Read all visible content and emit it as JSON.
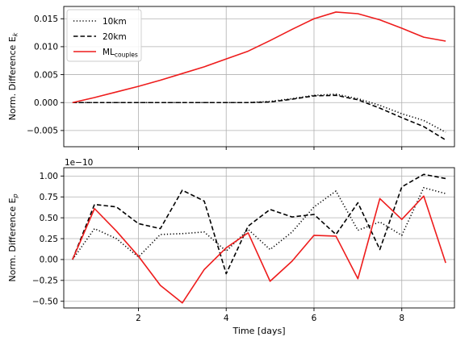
{
  "chart_data": [
    {
      "type": "line",
      "title": "",
      "xlabel": "",
      "ylabel": "Norm. Difference E",
      "ylabel_sub": "k",
      "xlim": [
        0.3,
        9.2
      ],
      "ylim": [
        -0.0079,
        0.0172
      ],
      "xticks": [
        2,
        4,
        6,
        8
      ],
      "xtick_labels_visible": false,
      "yticks": [
        -0.005,
        0.0,
        0.005,
        0.01,
        0.015
      ],
      "ytick_labels": [
        "−0.005",
        "0.000",
        "0.005",
        "0.010",
        "0.015"
      ],
      "grid": true,
      "legend": {
        "placement": "top-left",
        "entries": [
          {
            "label": "10km",
            "sub": ""
          },
          {
            "label": "20km",
            "sub": ""
          },
          {
            "label": "ML",
            "sub": "couples"
          }
        ]
      },
      "series": [
        {
          "name": "10km",
          "color": "#000000",
          "dash": "dotted",
          "x": [
            0.5,
            1,
            1.5,
            2,
            2.5,
            3,
            3.5,
            4,
            4.5,
            5,
            5.5,
            6,
            6.5,
            7,
            7.5,
            8,
            8.5,
            9
          ],
          "y": [
            0.0,
            0.0,
            0.0,
            0.0,
            0.0,
            0.0,
            0.0,
            0.0,
            0.0,
            0.0002,
            0.0007,
            0.0013,
            0.0015,
            0.0007,
            -0.0005,
            -0.002,
            -0.0032,
            -0.0053
          ]
        },
        {
          "name": "20km",
          "color": "#000000",
          "dash": "dashed",
          "x": [
            0.5,
            1,
            1.5,
            2,
            2.5,
            3,
            3.5,
            4,
            4.5,
            5,
            5.5,
            6,
            6.5,
            7,
            7.5,
            8,
            8.5,
            9
          ],
          "y": [
            0.0,
            0.0,
            0.0,
            0.0,
            0.0,
            0.0,
            0.0,
            0.0,
            0.0,
            0.0001,
            0.0006,
            0.0012,
            0.0013,
            0.0005,
            -0.001,
            -0.0027,
            -0.0043,
            -0.0067
          ]
        },
        {
          "name": "ML couples",
          "color": "#ee1c1c",
          "dash": "solid",
          "x": [
            0.5,
            1,
            1.5,
            2,
            2.5,
            3,
            3.5,
            4,
            4.5,
            5,
            5.5,
            6,
            6.5,
            7,
            7.5,
            8,
            8.5,
            9
          ],
          "y": [
            0.0,
            0.0009,
            0.0019,
            0.0029,
            0.004,
            0.0052,
            0.0064,
            0.0078,
            0.0092,
            0.0111,
            0.0131,
            0.015,
            0.0162,
            0.0159,
            0.0148,
            0.0133,
            0.0117,
            0.011
          ]
        }
      ]
    },
    {
      "type": "line",
      "title": "",
      "xlabel": "Time [days]",
      "ylabel": "Norm. Difference E",
      "ylabel_sub": "p",
      "offset_text": "1e−10",
      "xlim": [
        0.3,
        9.2
      ],
      "ylim": [
        -0.58,
        1.1
      ],
      "xticks": [
        2,
        4,
        6,
        8
      ],
      "xtick_labels": [
        "2",
        "4",
        "6",
        "8"
      ],
      "yticks": [
        -0.5,
        -0.25,
        0.0,
        0.25,
        0.5,
        0.75,
        1.0
      ],
      "ytick_labels": [
        "−0.50",
        "−0.25",
        "0.00",
        "0.25",
        "0.50",
        "0.75",
        "1.00"
      ],
      "grid": true,
      "series": [
        {
          "name": "10km",
          "color": "#000000",
          "dash": "dotted",
          "x": [
            0.5,
            1,
            1.5,
            2,
            2.5,
            3,
            3.5,
            4,
            4.5,
            5,
            5.5,
            6,
            6.5,
            7,
            7.5,
            8,
            8.5,
            9
          ],
          "y": [
            0.0,
            0.37,
            0.25,
            0.03,
            0.3,
            0.31,
            0.33,
            0.1,
            0.36,
            0.12,
            0.33,
            0.63,
            0.82,
            0.35,
            0.45,
            0.29,
            0.86,
            0.79
          ]
        },
        {
          "name": "20km",
          "color": "#000000",
          "dash": "dashed",
          "x": [
            0.5,
            1,
            1.5,
            2,
            2.5,
            3,
            3.5,
            4,
            4.5,
            5,
            5.5,
            6,
            6.5,
            7,
            7.5,
            8,
            8.5,
            9
          ],
          "y": [
            0.0,
            0.66,
            0.63,
            0.43,
            0.37,
            0.83,
            0.7,
            -0.17,
            0.4,
            0.6,
            0.51,
            0.54,
            0.3,
            0.68,
            0.12,
            0.87,
            1.02,
            0.97
          ]
        },
        {
          "name": "ML couples",
          "color": "#ee1c1c",
          "dash": "solid",
          "x": [
            0.5,
            1,
            1.5,
            2,
            2.5,
            3,
            3.5,
            4,
            4.5,
            5,
            5.5,
            6,
            6.5,
            7,
            7.5,
            8,
            8.5,
            9
          ],
          "y": [
            0.0,
            0.61,
            0.34,
            0.04,
            -0.31,
            -0.52,
            -0.12,
            0.14,
            0.32,
            -0.26,
            -0.02,
            0.29,
            0.28,
            -0.23,
            0.73,
            0.48,
            0.76,
            -0.04
          ]
        }
      ]
    }
  ]
}
